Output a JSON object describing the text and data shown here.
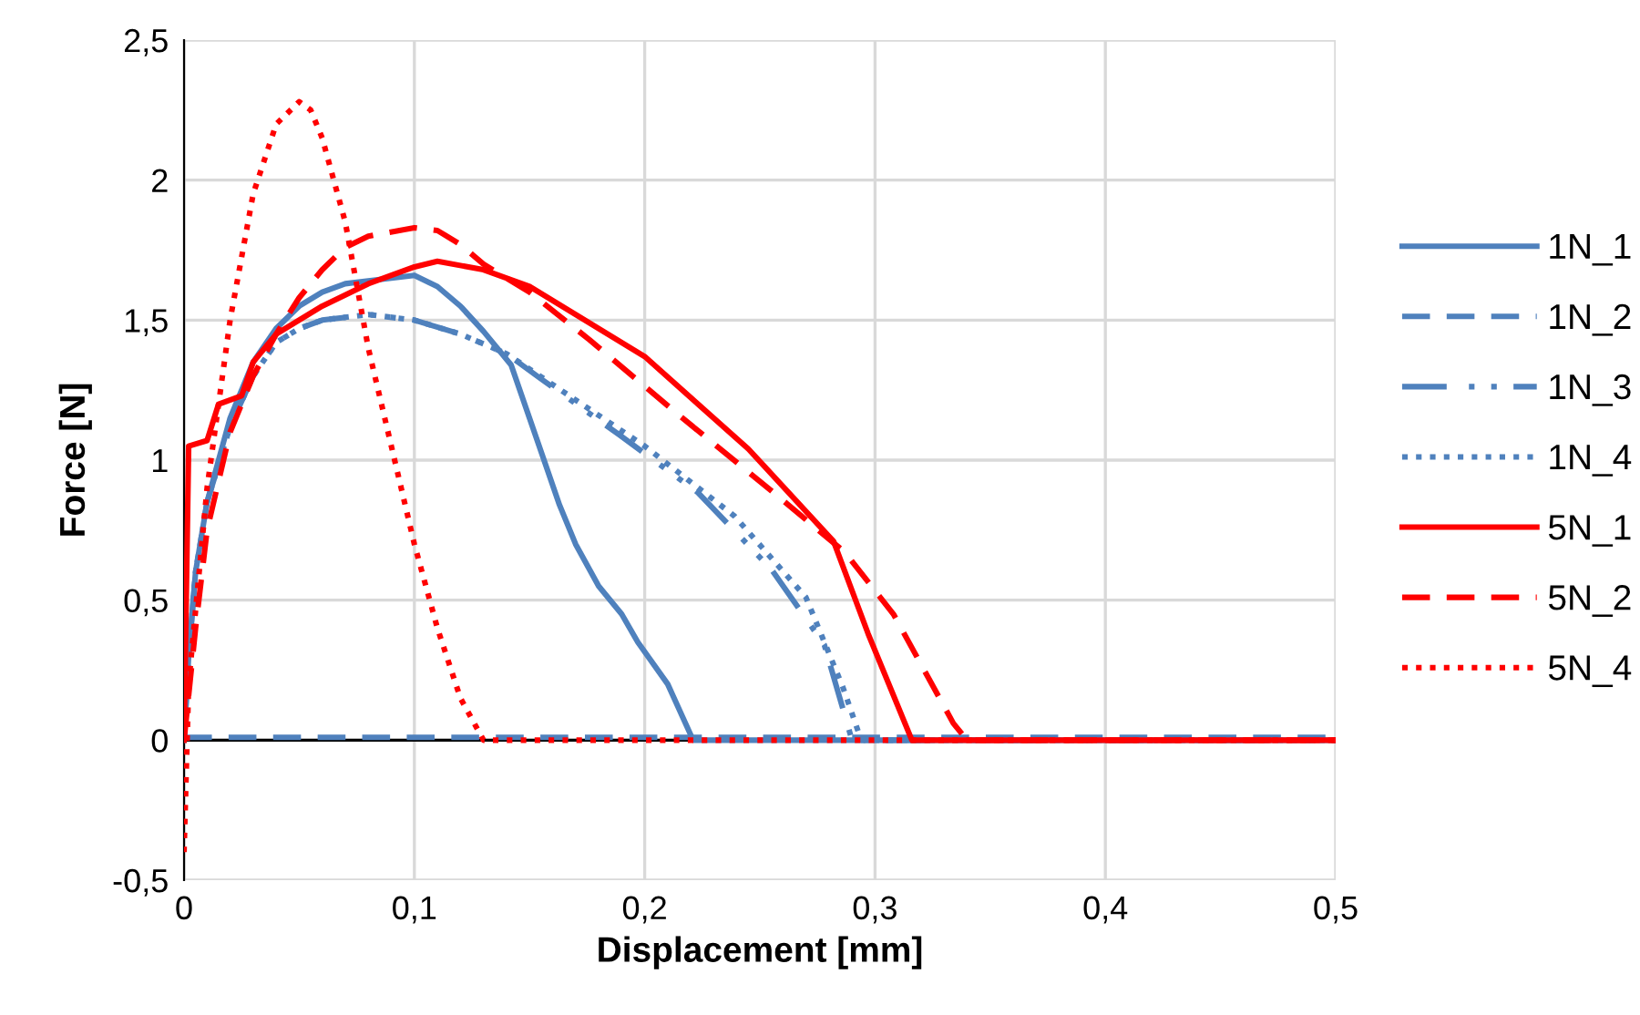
{
  "chart_data": {
    "type": "line",
    "xlabel": "Displacement [mm]",
    "ylabel": "Force [N]",
    "xlim": [
      0,
      0.5
    ],
    "ylim": [
      -0.5,
      2.5
    ],
    "xticks": [
      0,
      {
        "value": 0.1,
        "label": "0,1"
      },
      {
        "value": 0.2,
        "label": "0,2"
      },
      {
        "value": 0.3,
        "label": "0,3"
      },
      {
        "value": 0.4,
        "label": "0,4"
      },
      {
        "value": 0.5,
        "label": "0,5"
      }
    ],
    "yticks": [
      {
        "value": -0.5,
        "label": "-0,5"
      },
      0,
      {
        "value": 0.5,
        "label": "0,5"
      },
      1,
      {
        "value": 1.5,
        "label": "1,5"
      },
      2,
      {
        "value": 2.5,
        "label": "2,5"
      }
    ],
    "grid": true,
    "legend": "right",
    "marker": "none",
    "series": [
      {
        "name": "1N_1",
        "color": "#4f81bd",
        "line_style": "solid",
        "x": [
          0,
          0.002,
          0.005,
          0.01,
          0.02,
          0.03,
          0.04,
          0.05,
          0.06,
          0.07,
          0.08,
          0.09,
          0.1,
          0.11,
          0.12,
          0.13,
          0.142,
          0.15,
          0.163,
          0.17,
          0.18,
          0.19,
          0.197,
          0.21,
          0.221,
          0.5
        ],
        "values": [
          0,
          0.3,
          0.6,
          0.85,
          1.15,
          1.35,
          1.47,
          1.55,
          1.6,
          1.63,
          1.64,
          1.65,
          1.66,
          1.62,
          1.55,
          1.46,
          1.34,
          1.15,
          0.84,
          0.7,
          0.55,
          0.45,
          0.35,
          0.2,
          0,
          0
        ]
      },
      {
        "name": "1N_2",
        "color": "#4f81bd",
        "line_style": "dashed",
        "x": [
          0,
          0.5
        ],
        "values": [
          0.01,
          0.01
        ]
      },
      {
        "name": "1N_3",
        "color": "#4f81bd",
        "line_style": "dashdot",
        "x": [
          0,
          0.002,
          0.005,
          0.01,
          0.02,
          0.03,
          0.04,
          0.05,
          0.06,
          0.08,
          0.1,
          0.12,
          0.14,
          0.155,
          0.189,
          0.223,
          0.255,
          0.278,
          0.29,
          0.5
        ],
        "values": [
          0,
          0.3,
          0.6,
          0.85,
          1.12,
          1.3,
          1.42,
          1.47,
          1.5,
          1.52,
          1.5,
          1.45,
          1.38,
          1.29,
          1.09,
          0.885,
          0.61,
          0.34,
          0,
          0
        ]
      },
      {
        "name": "1N_4",
        "color": "#4f81bd",
        "line_style": "dotted",
        "x": [
          0,
          0.002,
          0.005,
          0.01,
          0.02,
          0.03,
          0.04,
          0.05,
          0.06,
          0.08,
          0.1,
          0.12,
          0.14,
          0.16,
          0.2,
          0.239,
          0.27,
          0.286,
          0.294,
          0.5
        ],
        "values": [
          0,
          0.3,
          0.6,
          0.85,
          1.12,
          1.3,
          1.42,
          1.47,
          1.5,
          1.52,
          1.5,
          1.45,
          1.38,
          1.27,
          1.05,
          0.8,
          0.51,
          0.19,
          0,
          0
        ]
      },
      {
        "name": "5N_1",
        "color": "#ff0000",
        "line_style": "solid",
        "x": [
          0,
          0.002,
          0.01,
          0.015,
          0.025,
          0.03,
          0.04,
          0.06,
          0.08,
          0.1,
          0.11,
          0.13,
          0.15,
          0.2,
          0.245,
          0.282,
          0.297,
          0.316,
          0.5
        ],
        "values": [
          0,
          1.05,
          1.07,
          1.2,
          1.23,
          1.35,
          1.45,
          1.55,
          1.63,
          1.69,
          1.71,
          1.68,
          1.62,
          1.37,
          1.04,
          0.71,
          0.38,
          0,
          0
        ]
      },
      {
        "name": "5N_2",
        "color": "#ff0000",
        "line_style": "dashed",
        "x": [
          0,
          0.005,
          0.01,
          0.02,
          0.03,
          0.04,
          0.05,
          0.06,
          0.07,
          0.08,
          0.1,
          0.11,
          0.12,
          0.13,
          0.15,
          0.176,
          0.215,
          0.258,
          0.287,
          0.308,
          0.324,
          0.334,
          0.34,
          0.5
        ],
        "values": [
          0,
          0.4,
          0.75,
          1.1,
          1.3,
          1.45,
          1.58,
          1.68,
          1.76,
          1.8,
          1.83,
          1.82,
          1.77,
          1.7,
          1.6,
          1.43,
          1.16,
          0.87,
          0.67,
          0.45,
          0.21,
          0.06,
          0,
          0
        ]
      },
      {
        "name": "5N_4",
        "color": "#ff0000",
        "line_style": "dotted",
        "x": [
          0,
          0.002,
          0.01,
          0.02,
          0.03,
          0.04,
          0.05,
          0.055,
          0.06,
          0.07,
          0.08,
          0.09,
          0.1,
          0.11,
          0.12,
          0.13,
          0.5
        ],
        "values": [
          -0.4,
          0.2,
          0.9,
          1.5,
          1.95,
          2.2,
          2.28,
          2.25,
          2.15,
          1.85,
          1.4,
          1.05,
          0.7,
          0.4,
          0.15,
          0,
          0
        ]
      }
    ]
  }
}
